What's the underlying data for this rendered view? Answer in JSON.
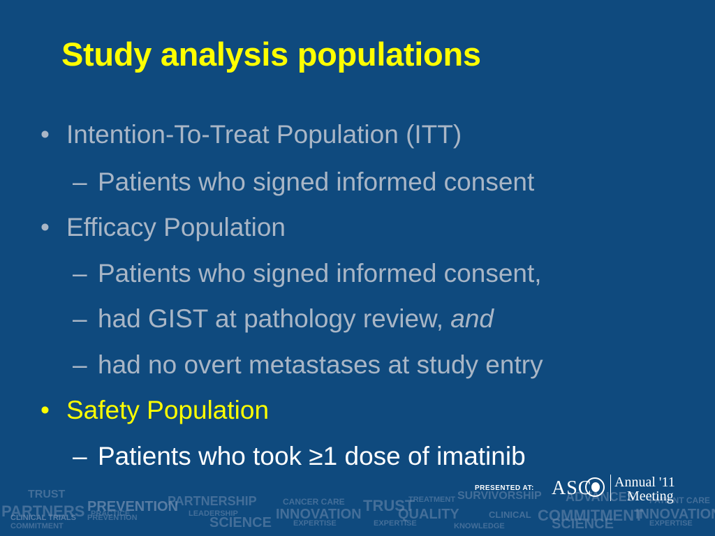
{
  "slide": {
    "title": "Study analysis populations",
    "items": [
      {
        "level": 1,
        "marker": "•",
        "text": "Intention-To-Treat Population (ITT)"
      },
      {
        "level": 2,
        "marker": "–",
        "text": "Patients who signed informed consent"
      },
      {
        "level": 1,
        "marker": "•",
        "text": "Efficacy Population"
      },
      {
        "level": 2,
        "marker": "–",
        "text": "Patients who signed informed consent,"
      },
      {
        "level": 2,
        "marker": "–",
        "text": "had GIST at pathology review, ",
        "emphasis": "and"
      },
      {
        "level": 2,
        "marker": "–",
        "text": "had no overt metastases at study entry"
      },
      {
        "level": 1,
        "marker": "•",
        "text": "Safety Population"
      },
      {
        "level": 2,
        "marker": "–",
        "text": "Patients who took ≥1 dose of imatinib"
      }
    ]
  },
  "footer": {
    "presented_at": "PRESENTED AT:",
    "logo_text": "ASC",
    "meeting_line1": "Annual '11",
    "meeting_line2": "Meeting",
    "background_words": [
      "TRUST",
      "PREVENTION",
      "PARTNERSHIP",
      "CANCER CARE",
      "TRUST",
      "TREATMENT",
      "SURVIVORSHIP",
      "ADVANCES",
      "PATIENT CARE",
      "PARTNERS",
      "PRACTICE",
      "LEADERSHIP",
      "INNOVATION",
      "QUALITY",
      "CLINICAL",
      "COMMITMENT",
      "INNOVATION",
      "CLINICAL TRIALS",
      "PREVENTION",
      "SCIENCE",
      "EXPERTISE",
      "EXPERTISE",
      "SCIENCE",
      "EXPERTISE",
      "COMMITMENT",
      "KNOWLEDGE"
    ]
  },
  "colors": {
    "background": "#0f4a7e",
    "title": "#ffff00",
    "body_text": "#a9b6c6",
    "highlight": "#ffff00",
    "emphasis_white": "#ffffff"
  }
}
